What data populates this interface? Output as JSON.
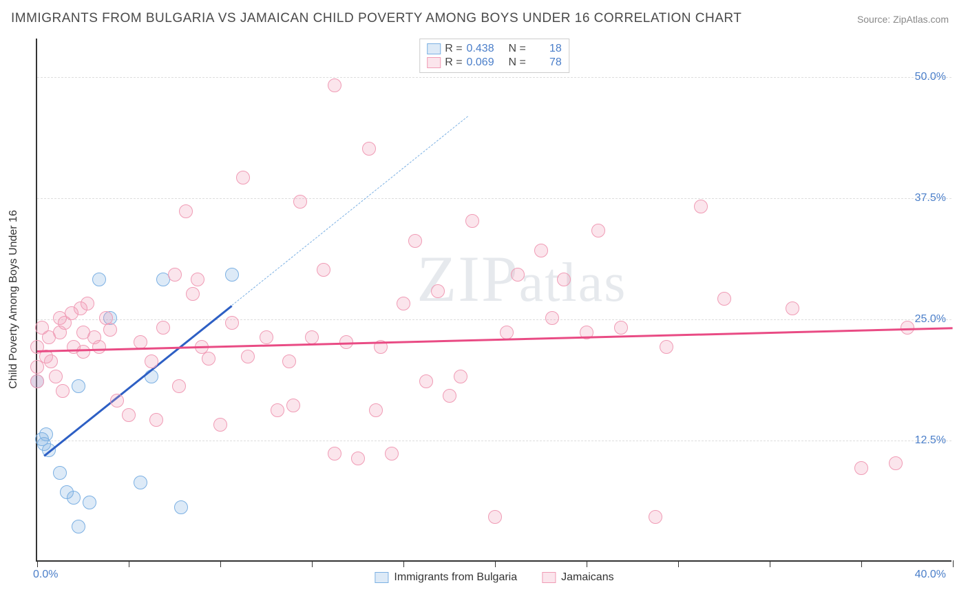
{
  "title": "IMMIGRANTS FROM BULGARIA VS JAMAICAN CHILD POVERTY AMONG BOYS UNDER 16 CORRELATION CHART",
  "source": "Source: ZipAtlas.com",
  "watermark": "ZIPatlas",
  "chart": {
    "type": "scatter",
    "xlim": [
      0,
      40
    ],
    "ylim": [
      0,
      54
    ],
    "y_ticks": [
      12.5,
      25.0,
      37.5,
      50.0
    ],
    "y_tick_labels": [
      "12.5%",
      "25.0%",
      "37.5%",
      "50.0%"
    ],
    "x_ticks": [
      0,
      4,
      8,
      12,
      16,
      20,
      24,
      28,
      32,
      36,
      40
    ],
    "x_origin_label": "0.0%",
    "x_max_label": "40.0%",
    "y_axis_label": "Child Poverty Among Boys Under 16",
    "grid_color": "#dddddd",
    "background_color": "#ffffff",
    "axis_color": "#333333",
    "tick_label_color": "#4a7ec9",
    "marker_radius": 10,
    "marker_stroke_width": 1.5,
    "series": [
      {
        "name": "Immigrants from Bulgaria",
        "fill": "rgba(120,170,225,0.25)",
        "stroke": "#7bb0e3",
        "line_color": "#2d5fc4",
        "R": "0.438",
        "N": "18",
        "trend": {
          "x1": 0.3,
          "y1": 11.0,
          "x2": 8.5,
          "y2": 26.5
        },
        "trend_extend": {
          "x1": 8.5,
          "y1": 26.5,
          "x2": 18.8,
          "y2": 46.0
        },
        "points": [
          [
            0.0,
            18.5
          ],
          [
            0.2,
            12.5
          ],
          [
            0.3,
            12.0
          ],
          [
            0.4,
            13.0
          ],
          [
            0.5,
            11.4
          ],
          [
            1.0,
            9.0
          ],
          [
            1.3,
            7.0
          ],
          [
            1.6,
            6.5
          ],
          [
            1.8,
            18.0
          ],
          [
            1.8,
            3.5
          ],
          [
            2.3,
            6.0
          ],
          [
            2.7,
            29.0
          ],
          [
            4.5,
            8.0
          ],
          [
            3.2,
            25.0
          ],
          [
            5.0,
            19.0
          ],
          [
            5.5,
            29.0
          ],
          [
            6.3,
            5.5
          ],
          [
            8.5,
            29.5
          ]
        ]
      },
      {
        "name": "Jamaicans",
        "fill": "rgba(240,150,180,0.25)",
        "stroke": "#f09bb5",
        "line_color": "#e94b84",
        "R": "0.069",
        "N": "78",
        "trend": {
          "x1": 0,
          "y1": 21.8,
          "x2": 40,
          "y2": 24.2
        },
        "points": [
          [
            0.0,
            22.0
          ],
          [
            0.0,
            20.0
          ],
          [
            0.0,
            18.5
          ],
          [
            0.2,
            24.0
          ],
          [
            0.4,
            21.0
          ],
          [
            0.5,
            23.0
          ],
          [
            0.6,
            20.5
          ],
          [
            0.8,
            19.0
          ],
          [
            1.0,
            25.0
          ],
          [
            1.0,
            23.5
          ],
          [
            1.1,
            17.5
          ],
          [
            1.2,
            24.5
          ],
          [
            1.5,
            25.5
          ],
          [
            1.6,
            22.0
          ],
          [
            1.9,
            26.0
          ],
          [
            2.0,
            23.5
          ],
          [
            2.0,
            21.5
          ],
          [
            2.2,
            26.5
          ],
          [
            2.5,
            23.0
          ],
          [
            2.7,
            22.0
          ],
          [
            3.0,
            25.0
          ],
          [
            3.2,
            23.8
          ],
          [
            3.5,
            16.5
          ],
          [
            4.0,
            15.0
          ],
          [
            4.5,
            22.5
          ],
          [
            5.0,
            20.5
          ],
          [
            5.2,
            14.5
          ],
          [
            5.5,
            24.0
          ],
          [
            6.0,
            29.5
          ],
          [
            6.2,
            18.0
          ],
          [
            6.5,
            36.0
          ],
          [
            6.8,
            27.5
          ],
          [
            7.0,
            29.0
          ],
          [
            7.2,
            22.0
          ],
          [
            7.5,
            20.8
          ],
          [
            8.0,
            14.0
          ],
          [
            8.5,
            24.5
          ],
          [
            9.0,
            39.5
          ],
          [
            9.2,
            21.0
          ],
          [
            10.0,
            23.0
          ],
          [
            10.5,
            15.5
          ],
          [
            11.0,
            20.5
          ],
          [
            11.2,
            16.0
          ],
          [
            11.5,
            37.0
          ],
          [
            12.0,
            23.0
          ],
          [
            12.5,
            30.0
          ],
          [
            13.0,
            49.0
          ],
          [
            13.0,
            11.0
          ],
          [
            13.5,
            22.5
          ],
          [
            14.0,
            10.5
          ],
          [
            14.5,
            42.5
          ],
          [
            14.8,
            15.5
          ],
          [
            15.0,
            22.0
          ],
          [
            15.5,
            11.0
          ],
          [
            16.0,
            26.5
          ],
          [
            16.5,
            33.0
          ],
          [
            17.0,
            18.5
          ],
          [
            17.5,
            27.8
          ],
          [
            18.0,
            17.0
          ],
          [
            18.5,
            19.0
          ],
          [
            19.0,
            35.0
          ],
          [
            20.0,
            4.5
          ],
          [
            20.5,
            23.5
          ],
          [
            21.0,
            29.5
          ],
          [
            22.0,
            32.0
          ],
          [
            22.5,
            25.0
          ],
          [
            23.0,
            29.0
          ],
          [
            24.0,
            23.5
          ],
          [
            24.5,
            34.0
          ],
          [
            25.5,
            24.0
          ],
          [
            27.0,
            4.5
          ],
          [
            27.5,
            22.0
          ],
          [
            29.0,
            36.5
          ],
          [
            30.0,
            27.0
          ],
          [
            33.0,
            26.0
          ],
          [
            36.0,
            9.5
          ],
          [
            37.5,
            10.0
          ],
          [
            38.0,
            24.0
          ]
        ]
      }
    ],
    "legend_labels": {
      "R_prefix": "R = ",
      "N_prefix": "N = "
    },
    "bottom_legend": [
      "Immigrants from Bulgaria",
      "Jamaicans"
    ]
  }
}
